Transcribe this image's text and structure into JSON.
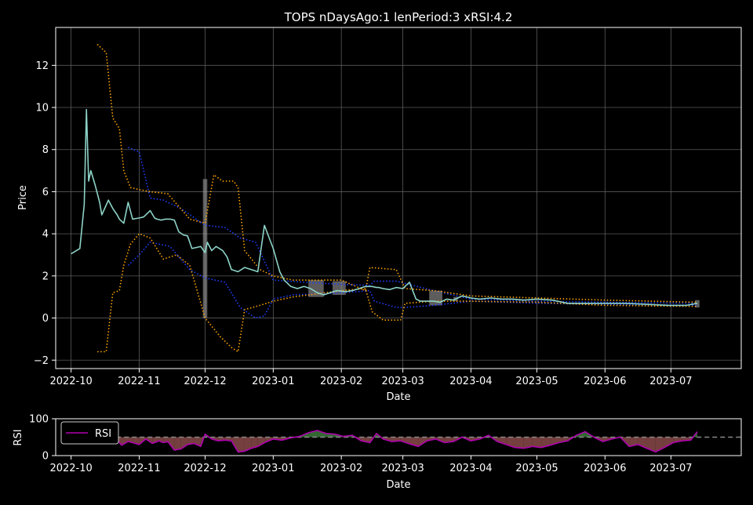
{
  "chart_data": [
    {
      "type": "line",
      "title": "TOPS nDaysAgo:1 lenPeriod:3 xRSI:4.2",
      "xlabel": "Date",
      "ylabel": "Price",
      "xlim": [
        "2022-09-24",
        "2023-08-02"
      ],
      "ylim": [
        -2.4,
        13.8
      ],
      "x_tick_labels": [
        "2022-10",
        "2022-11",
        "2022-12",
        "2023-01",
        "2023-02",
        "2023-03",
        "2023-04",
        "2023-05",
        "2023-06",
        "2023-07"
      ],
      "y_tick_labels": [
        "−2",
        "0",
        "2",
        "4",
        "6",
        "8",
        "10",
        "12"
      ],
      "grid": true,
      "colors": {
        "price": "#8dd3c7",
        "bollinger": "#ffa500",
        "channel": "#1f3fff",
        "shade": "#aaaaaa"
      },
      "series": [
        {
          "key": "price",
          "x": [
            "2022-10-01",
            "2022-10-05",
            "2022-10-07",
            "2022-10-08",
            "2022-10-09",
            "2022-10-10",
            "2022-10-12",
            "2022-10-14",
            "2022-10-15",
            "2022-10-18",
            "2022-10-20",
            "2022-10-22",
            "2022-10-23",
            "2022-10-25",
            "2022-10-27",
            "2022-10-29",
            "2022-11-01",
            "2022-11-03",
            "2022-11-06",
            "2022-11-08",
            "2022-11-09",
            "2022-11-11",
            "2022-11-13",
            "2022-11-15",
            "2022-11-17",
            "2022-11-19",
            "2022-11-21",
            "2022-11-23",
            "2022-11-25",
            "2022-11-29",
            "2022-12-01",
            "2022-12-02",
            "2022-12-03",
            "2022-12-04",
            "2022-12-06",
            "2022-12-09",
            "2022-12-11",
            "2022-12-13",
            "2022-12-16",
            "2022-12-19",
            "2022-12-22",
            "2022-12-25",
            "2022-12-28",
            "2023-01-01",
            "2023-01-04",
            "2023-01-06",
            "2023-01-09",
            "2023-01-12",
            "2023-01-15",
            "2023-01-18",
            "2023-01-21",
            "2023-01-24",
            "2023-01-27",
            "2023-01-30",
            "2023-02-03",
            "2023-02-06",
            "2023-02-09",
            "2023-02-12",
            "2023-02-15",
            "2023-02-17",
            "2023-02-18",
            "2023-02-20",
            "2023-02-23",
            "2023-02-26",
            "2023-03-01",
            "2023-03-04",
            "2023-03-07",
            "2023-03-09",
            "2023-03-12",
            "2023-03-15",
            "2023-03-18",
            "2023-03-21",
            "2023-03-24",
            "2023-03-28",
            "2023-04-01",
            "2023-04-05",
            "2023-04-10",
            "2023-04-15",
            "2023-04-20",
            "2023-04-25",
            "2023-05-01",
            "2023-05-08",
            "2023-05-15",
            "2023-05-22",
            "2023-06-01",
            "2023-06-10",
            "2023-06-20",
            "2023-06-30",
            "2023-07-08",
            "2023-07-13"
          ],
          "y": [
            3.05,
            3.3,
            5.4,
            9.9,
            6.5,
            7.0,
            6.3,
            5.5,
            4.9,
            5.6,
            5.2,
            4.9,
            4.7,
            4.5,
            5.5,
            4.7,
            4.75,
            4.8,
            5.1,
            4.75,
            4.7,
            4.65,
            4.7,
            4.7,
            4.65,
            4.1,
            3.95,
            3.9,
            3.3,
            3.4,
            3.1,
            3.6,
            3.4,
            3.2,
            3.4,
            3.2,
            2.9,
            2.3,
            2.2,
            2.4,
            2.3,
            2.2,
            4.4,
            3.3,
            2.2,
            1.8,
            1.5,
            1.4,
            1.5,
            1.4,
            1.2,
            1.1,
            1.2,
            1.3,
            1.25,
            1.3,
            1.4,
            1.5,
            1.5,
            1.45,
            1.45,
            1.4,
            1.35,
            1.45,
            1.4,
            1.7,
            0.9,
            0.8,
            0.8,
            0.8,
            0.75,
            0.9,
            0.85,
            1.05,
            0.95,
            0.9,
            0.95,
            0.9,
            0.9,
            0.85,
            0.9,
            0.85,
            0.7,
            0.7,
            0.7,
            0.7,
            0.65,
            0.6,
            0.6,
            0.7
          ]
        },
        {
          "key": "bollinger-upper",
          "x": [
            "2022-10-13",
            "2022-10-17",
            "2022-10-20",
            "2022-10-23",
            "2022-10-25",
            "2022-10-28",
            "2022-11-01",
            "2022-11-06",
            "2022-11-14",
            "2022-11-24",
            "2022-12-01",
            "2022-12-05",
            "2022-12-09",
            "2022-12-14",
            "2022-12-16",
            "2022-12-19",
            "2022-12-26",
            "2023-01-01",
            "2023-01-10",
            "2023-02-01",
            "2023-02-12",
            "2023-02-14",
            "2023-02-26",
            "2023-03-02",
            "2023-03-15",
            "2023-04-01",
            "2023-05-01",
            "2023-06-01",
            "2023-07-13"
          ],
          "y": [
            13.0,
            12.6,
            9.5,
            9.0,
            7.0,
            6.2,
            6.1,
            6.0,
            5.9,
            4.7,
            4.5,
            6.8,
            6.5,
            6.5,
            6.2,
            3.2,
            2.3,
            2.0,
            1.8,
            1.8,
            1.3,
            2.4,
            2.3,
            1.4,
            1.3,
            1.05,
            0.95,
            0.85,
            0.75
          ]
        },
        {
          "key": "bollinger-lower",
          "x": [
            "2022-10-13",
            "2022-10-17",
            "2022-10-20",
            "2022-10-23",
            "2022-10-25",
            "2022-10-28",
            "2022-11-01",
            "2022-11-06",
            "2022-11-12",
            "2022-11-18",
            "2022-11-24",
            "2022-12-01",
            "2022-12-08",
            "2022-12-13",
            "2022-12-16",
            "2022-12-19",
            "2022-12-26",
            "2023-01-01",
            "2023-01-10",
            "2023-02-01",
            "2023-02-12",
            "2023-02-15",
            "2023-02-20",
            "2023-02-28",
            "2023-03-02",
            "2023-03-15",
            "2023-04-01",
            "2023-05-01",
            "2023-06-01",
            "2023-07-13"
          ],
          "y": [
            -1.6,
            -1.6,
            1.2,
            1.3,
            2.5,
            3.5,
            4.0,
            3.8,
            2.8,
            3.0,
            2.5,
            0.0,
            -0.9,
            -1.4,
            -1.6,
            0.4,
            0.6,
            0.8,
            1.0,
            1.3,
            1.4,
            0.3,
            -0.1,
            -0.1,
            0.7,
            0.8,
            0.8,
            0.75,
            0.6,
            0.55
          ]
        },
        {
          "key": "channel-upper",
          "x": [
            "2022-10-27",
            "2022-11-01",
            "2022-11-06",
            "2022-11-12",
            "2022-11-20",
            "2022-12-01",
            "2022-12-10",
            "2022-12-17",
            "2022-12-24",
            "2023-01-01",
            "2023-01-15",
            "2023-02-01",
            "2023-02-14",
            "2023-02-16",
            "2023-02-26",
            "2023-03-15",
            "2023-04-01",
            "2023-05-01",
            "2023-06-01",
            "2023-07-13"
          ],
          "y": [
            8.1,
            7.9,
            5.7,
            5.6,
            5.2,
            4.4,
            4.3,
            3.8,
            3.6,
            1.8,
            1.7,
            1.6,
            1.55,
            1.75,
            1.75,
            1.3,
            0.9,
            0.8,
            0.75,
            0.7
          ]
        },
        {
          "key": "channel-lower",
          "x": [
            "2022-10-27",
            "2022-11-01",
            "2022-11-06",
            "2022-11-15",
            "2022-11-24",
            "2022-12-01",
            "2022-12-10",
            "2022-12-17",
            "2022-12-24",
            "2022-12-28",
            "2023-01-01",
            "2023-01-10",
            "2023-02-01",
            "2023-02-14",
            "2023-02-16",
            "2023-02-26",
            "2023-03-02",
            "2023-03-15",
            "2023-04-01",
            "2023-05-01",
            "2023-06-01",
            "2023-07-13"
          ],
          "y": [
            2.5,
            3.0,
            3.6,
            3.4,
            2.3,
            1.9,
            1.7,
            0.5,
            0.0,
            0.1,
            0.9,
            1.1,
            1.2,
            1.3,
            0.8,
            0.5,
            0.5,
            0.6,
            0.8,
            0.7,
            0.65,
            0.6
          ]
        }
      ],
      "shaded_spans": [
        {
          "x0": "2022-11-30",
          "x1": "2022-12-02",
          "y0": 0.0,
          "y1": 6.6
        },
        {
          "x0": "2023-01-17",
          "x1": "2023-01-24",
          "y0": 1.0,
          "y1": 1.8
        },
        {
          "x0": "2023-01-28",
          "x1": "2023-02-03",
          "y0": 1.1,
          "y1": 1.75
        },
        {
          "x0": "2023-03-13",
          "x1": "2023-03-19",
          "y0": 0.6,
          "y1": 1.3
        },
        {
          "x0": "2023-03-24",
          "x1": "2023-03-26",
          "y0": 0.8,
          "y1": 1.0
        },
        {
          "x0": "2023-07-12",
          "x1": "2023-07-14",
          "y0": 0.5,
          "y1": 0.85
        }
      ]
    },
    {
      "type": "area",
      "xlabel": "Date",
      "ylabel": "RSI",
      "xlim": [
        "2022-09-24",
        "2023-08-02"
      ],
      "ylim": [
        0,
        100
      ],
      "x_tick_labels": [
        "2022-10",
        "2022-11",
        "2022-12",
        "2023-01",
        "2023-02",
        "2023-03",
        "2023-04",
        "2023-05",
        "2023-06",
        "2023-07"
      ],
      "y_tick_labels": [
        "0",
        "100"
      ],
      "reference_line": 50,
      "legend": {
        "label": "RSI",
        "placement": "upper-left"
      },
      "colors": {
        "line": "#b000b0",
        "above": "#3c7a3c",
        "below": "#8a4a4a",
        "ref": "#888888"
      },
      "series": [
        {
          "name": "RSI",
          "x": [
            "2022-10-18",
            "2022-10-21",
            "2022-10-24",
            "2022-10-27",
            "2022-10-29",
            "2022-11-01",
            "2022-11-04",
            "2022-11-07",
            "2022-11-10",
            "2022-11-12",
            "2022-11-14",
            "2022-11-17",
            "2022-11-20",
            "2022-11-23",
            "2022-11-26",
            "2022-11-29",
            "2022-12-01",
            "2022-12-04",
            "2022-12-07",
            "2022-12-10",
            "2022-12-13",
            "2022-12-16",
            "2022-12-19",
            "2022-12-22",
            "2022-12-25",
            "2022-12-28",
            "2023-01-01",
            "2023-01-05",
            "2023-01-09",
            "2023-01-13",
            "2023-01-17",
            "2023-01-21",
            "2023-01-25",
            "2023-01-29",
            "2023-02-02",
            "2023-02-06",
            "2023-02-10",
            "2023-02-14",
            "2023-02-17",
            "2023-02-20",
            "2023-02-24",
            "2023-02-28",
            "2023-03-04",
            "2023-03-08",
            "2023-03-12",
            "2023-03-16",
            "2023-03-20",
            "2023-03-24",
            "2023-03-28",
            "2023-04-01",
            "2023-04-05",
            "2023-04-09",
            "2023-04-13",
            "2023-04-17",
            "2023-04-21",
            "2023-04-25",
            "2023-04-29",
            "2023-05-03",
            "2023-05-07",
            "2023-05-11",
            "2023-05-15",
            "2023-05-19",
            "2023-05-23",
            "2023-05-27",
            "2023-05-31",
            "2023-06-04",
            "2023-06-08",
            "2023-06-12",
            "2023-06-16",
            "2023-06-20",
            "2023-06-24",
            "2023-06-28",
            "2023-07-02",
            "2023-07-06",
            "2023-07-10",
            "2023-07-13"
          ],
          "y": [
            55,
            50,
            28,
            38,
            35,
            30,
            45,
            33,
            40,
            35,
            38,
            15,
            18,
            30,
            33,
            25,
            58,
            45,
            40,
            42,
            40,
            10,
            12,
            20,
            25,
            35,
            45,
            42,
            48,
            52,
            62,
            68,
            60,
            58,
            52,
            55,
            40,
            35,
            60,
            45,
            38,
            40,
            32,
            25,
            40,
            45,
            35,
            38,
            50,
            40,
            45,
            55,
            38,
            30,
            22,
            20,
            25,
            22,
            28,
            35,
            40,
            55,
            65,
            50,
            38,
            45,
            50,
            25,
            30,
            20,
            10,
            22,
            35,
            40,
            42,
            65
          ]
        }
      ]
    }
  ]
}
